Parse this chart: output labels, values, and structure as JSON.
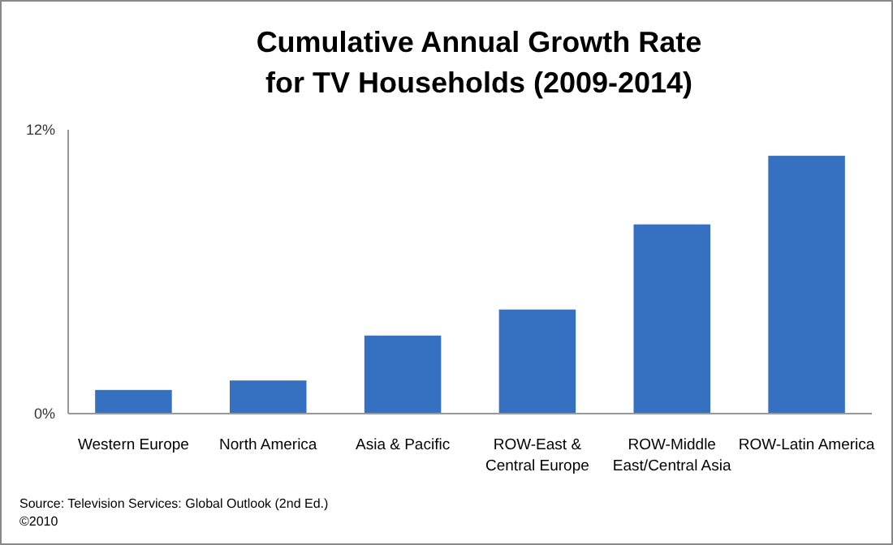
{
  "chart_data": {
    "type": "bar",
    "title": "Cumulative Annual Growth Rate\nfor TV Households (2009-2014)",
    "categories": [
      "Western Europe",
      "North America",
      "Asia & Pacific",
      "ROW-East & Central Europe",
      "ROW-Middle East/Central Asia",
      "ROW-Latin America"
    ],
    "values": [
      1.0,
      1.4,
      3.3,
      4.4,
      8.0,
      10.9
    ],
    "color": "#3670c0",
    "ylim": [
      0,
      12
    ],
    "yticks": [
      {
        "value": 0,
        "label": "0%"
      },
      {
        "value": 12,
        "label": "12%"
      }
    ],
    "grid": false,
    "annotations": [
      "Source: Television Services: Global Outlook (2nd Ed.)",
      "©2010"
    ]
  }
}
